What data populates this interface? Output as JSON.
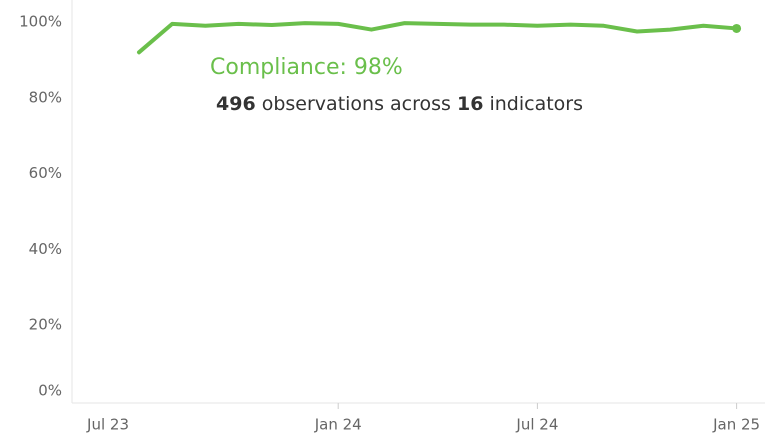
{
  "chart_data": {
    "type": "line",
    "categories": [
      "Jul 23",
      null,
      null,
      null,
      null,
      null,
      "Jan 24",
      null,
      null,
      null,
      null,
      null,
      "Jul 24",
      null,
      null,
      null,
      null,
      null,
      "Jan 25"
    ],
    "series": [
      {
        "name": "Compliance",
        "color": "#6abf4b",
        "values": [
          92,
          99.5,
          99,
          99.5,
          99.2,
          99.7,
          99.5,
          98,
          99.7,
          99.5,
          99.3,
          99.3,
          99,
          99.3,
          99,
          97.5,
          98,
          99,
          98.3
        ]
      }
    ],
    "ylim": [
      0,
      100
    ],
    "yticks": [
      {
        "value": 0,
        "label": "0%"
      },
      {
        "value": 20,
        "label": "20%"
      },
      {
        "value": 40,
        "label": "40%"
      },
      {
        "value": 60,
        "label": "60%"
      },
      {
        "value": 80,
        "label": "80%"
      },
      {
        "value": 100,
        "label": "100%"
      }
    ],
    "grid": false,
    "annotation": {
      "title": "Compliance: 98%",
      "observations_count": 496,
      "observations_label": "observations across",
      "indicators_count": 16,
      "indicators_label": "indicators"
    }
  }
}
